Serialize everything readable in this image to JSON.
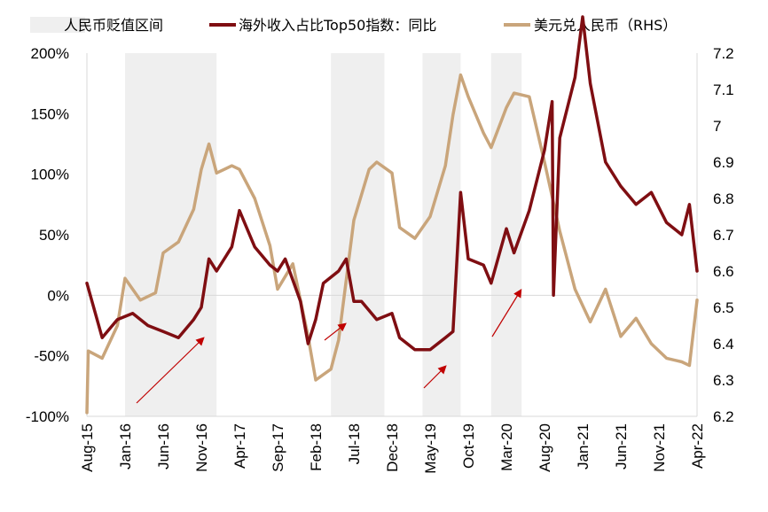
{
  "chart_data": {
    "type": "line",
    "title": "",
    "legend": [
      {
        "name": "人民币贬值区间",
        "kind": "shade",
        "color": "#efefef"
      },
      {
        "name": "海外收入占比Top50指数：同比",
        "kind": "line",
        "color": "#7f0e12",
        "axis": "left"
      },
      {
        "name": "美元兑人民币（RHS）",
        "kind": "line",
        "color": "#c9a57b",
        "axis": "right"
      }
    ],
    "x_tick_labels": [
      "Aug-15",
      "Jan-16",
      "Jun-16",
      "Nov-16",
      "Apr-17",
      "Sep-17",
      "Feb-18",
      "Jul-18",
      "Dec-18",
      "May-19",
      "Oct-19",
      "Mar-20",
      "Aug-20",
      "Jan-21",
      "Jun-21",
      "Nov-21",
      "Apr-22"
    ],
    "y_left": {
      "ylim": [
        -100,
        200
      ],
      "ticks": [
        -100,
        -50,
        0,
        50,
        100,
        150,
        200
      ],
      "tick_labels": [
        "-100%",
        "-50%",
        "0%",
        "50%",
        "100%",
        "150%",
        "200%"
      ]
    },
    "y_right": {
      "ylim": [
        6.2,
        7.2
      ],
      "ticks": [
        6.2,
        6.3,
        6.4,
        6.5,
        6.6,
        6.7,
        6.8,
        6.9,
        7,
        7.1,
        7.2
      ],
      "tick_labels": [
        "6.2",
        "6.3",
        "6.4",
        "6.5",
        "6.6",
        "6.7",
        "6.8",
        "6.9",
        "7",
        "7.1",
        "7.2"
      ]
    },
    "depreciation_periods": [
      {
        "start": "Jan-16",
        "end": "Jan-17"
      },
      {
        "start": "Apr-18",
        "end": "Nov-18"
      },
      {
        "start": "Apr-19",
        "end": "Sep-19"
      },
      {
        "start": "Jan-20",
        "end": "May-20"
      }
    ],
    "series": [
      {
        "name": "海外收入占比Top50指数：同比",
        "axis": "left",
        "x": [
          "Aug-15",
          "Oct-15",
          "Dec-15",
          "Feb-16",
          "Apr-16",
          "Jun-16",
          "Aug-16",
          "Oct-16",
          "Nov-16",
          "Dec-16",
          "Jan-17",
          "Mar-17",
          "Apr-17",
          "Jun-17",
          "Aug-17",
          "Sep-17",
          "Oct-17",
          "Dec-17",
          "Jan-18",
          "Feb-18",
          "Mar-18",
          "May-18",
          "Jun-18",
          "Jul-18",
          "Aug-18",
          "Oct-18",
          "Dec-18",
          "Jan-19",
          "Mar-19",
          "May-19",
          "Jul-19",
          "Aug-19",
          "Sep-19",
          "Oct-19",
          "Dec-19",
          "Jan-20",
          "Mar-20",
          "Apr-20",
          "Jun-20",
          "Aug-20",
          "Sep-20",
          "Sep-20",
          "Oct-20",
          "Dec-20",
          "Jan-21",
          "Feb-21",
          "Apr-21",
          "Jun-21",
          "Aug-21",
          "Oct-21",
          "Dec-21",
          "Feb-22",
          "Mar-22",
          "Apr-22"
        ],
        "values": [
          10,
          -35,
          -20,
          -15,
          -25,
          -30,
          -35,
          -20,
          -10,
          30,
          20,
          40,
          70,
          40,
          25,
          20,
          30,
          -5,
          -40,
          -20,
          10,
          20,
          30,
          -5,
          -5,
          -20,
          -15,
          -35,
          -45,
          -45,
          -35,
          -30,
          85,
          30,
          25,
          10,
          55,
          35,
          70,
          120,
          160,
          0,
          130,
          180,
          230,
          175,
          110,
          90,
          75,
          85,
          60,
          50,
          75,
          20
        ]
      },
      {
        "name": "美元兑人民币（RHS）",
        "axis": "right",
        "x": [
          "Aug-15",
          "Aug-15",
          "Oct-15",
          "Dec-15",
          "Jan-16",
          "Mar-16",
          "May-16",
          "Jun-16",
          "Aug-16",
          "Oct-16",
          "Nov-16",
          "Dec-16",
          "Jan-17",
          "Mar-17",
          "Apr-17",
          "Jun-17",
          "Aug-17",
          "Sep-17",
          "Nov-17",
          "Jan-18",
          "Feb-18",
          "Apr-18",
          "May-18",
          "Jul-18",
          "Sep-18",
          "Oct-18",
          "Dec-18",
          "Jan-19",
          "Mar-19",
          "May-19",
          "Jul-19",
          "Aug-19",
          "Sep-19",
          "Oct-19",
          "Dec-19",
          "Jan-20",
          "Mar-20",
          "Apr-20",
          "Jun-20",
          "Aug-20",
          "Oct-20",
          "Dec-20",
          "Feb-21",
          "Apr-21",
          "Jun-21",
          "Aug-21",
          "Oct-21",
          "Dec-21",
          "Feb-22",
          "Mar-22",
          "Apr-22"
        ],
        "values": [
          6.21,
          6.38,
          6.36,
          6.45,
          6.58,
          6.52,
          6.54,
          6.65,
          6.68,
          6.77,
          6.88,
          6.95,
          6.87,
          6.89,
          6.88,
          6.8,
          6.67,
          6.55,
          6.62,
          6.42,
          6.3,
          6.33,
          6.41,
          6.74,
          6.88,
          6.9,
          6.87,
          6.72,
          6.69,
          6.75,
          6.89,
          7.03,
          7.14,
          7.08,
          6.98,
          6.94,
          7.05,
          7.09,
          7.08,
          6.9,
          6.71,
          6.55,
          6.46,
          6.55,
          6.42,
          6.47,
          6.4,
          6.36,
          6.35,
          6.34,
          6.52
        ]
      }
    ]
  }
}
